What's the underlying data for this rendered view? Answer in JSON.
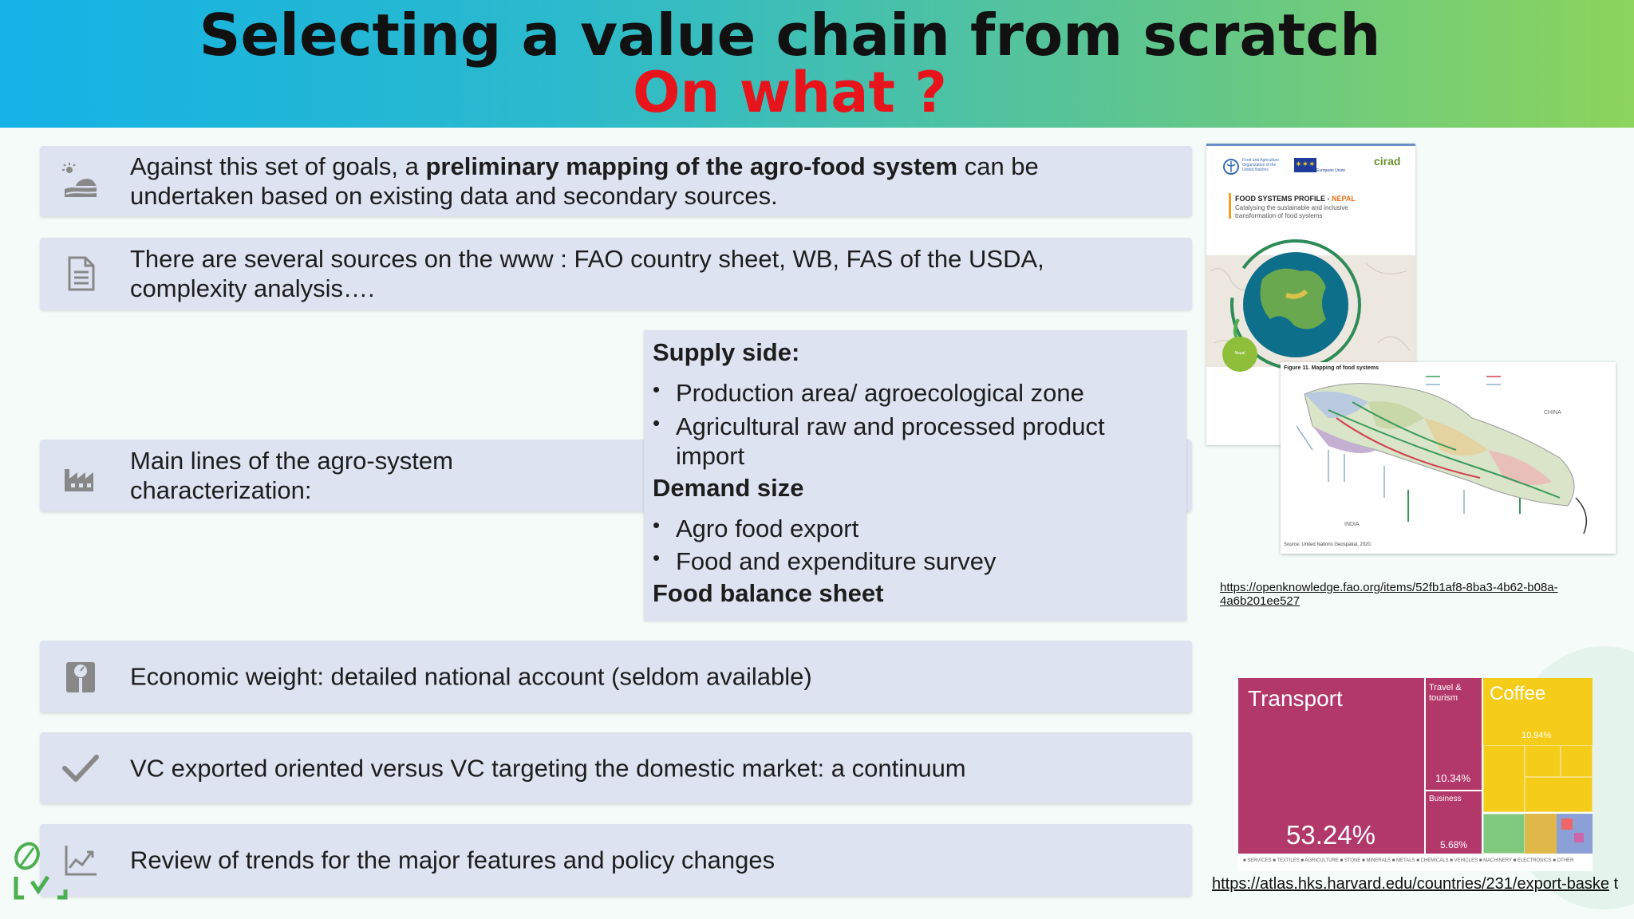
{
  "header": {
    "title": "Selecting a value chain from scratch",
    "subtitle": "On what ?"
  },
  "rows": [
    {
      "icon": "landscape-sun-icon",
      "pre": "Against this set of goals, a ",
      "bold": "preliminary mapping of the agro-food system",
      "post": " can be undertaken based on existing data and secondary sources."
    },
    {
      "icon": "document-icon",
      "text": "There are several sources on the www : FAO country sheet, WB, FAS of the USDA, complexity analysis…."
    },
    {
      "icon": "factory-icon",
      "text": "Main lines of the agro-system characterization:"
    },
    {
      "icon": "scale-icon",
      "text": "Economic weight: detailed national account (seldom available)"
    },
    {
      "icon": "checkmark-icon",
      "text": "VC exported oriented versus VC targeting the domestic market: a continuum"
    },
    {
      "icon": "trend-chart-icon",
      "text": "Review of trends for the major features and policy changes"
    }
  ],
  "characterization": {
    "supply_heading": "Supply side:",
    "supply_items": [
      "Production area/ agroecological zone",
      "Agricultural raw and processed product import"
    ],
    "demand_heading": "Demand size",
    "demand_items": [
      "Agro food export",
      "Food and expenditure survey"
    ],
    "food_balance": "Food balance sheet"
  },
  "fao_doc": {
    "title_prefix": "FOOD SYSTEMS PROFILE - ",
    "title_country": "NEPAL",
    "subtitle": "Catalysing the sustainable and inclusive transformation of food systems",
    "logo_cirad": "cirad",
    "logo_eu": "European Union",
    "logo_fao": "Food and Agriculture Organization of the United Nations",
    "badge": "Nepal"
  },
  "map_figure": {
    "title": "Figure 11. Mapping of food systems",
    "china": "CHINA",
    "india": "INDIA",
    "source": "Source: United Nations Geospatial, 2020."
  },
  "link1": "https://openknowledge.fao.org/items/52fb1af8-8ba3-4b62-b08a-4a6b201ee527",
  "treemap": {
    "transport_label": "Transport",
    "transport_pct": "53.24%",
    "travel_label": "Travel & tourism",
    "travel_pct": "10.34%",
    "business_label": "Business",
    "business_pct": "5.68%",
    "coffee_label": "Coffee",
    "coffee_pct": "10.94%",
    "legend": "■ SERVICES ■ TEXTILES ■ AGRICULTURE ■ STONE ■ MINERALS ■ METALS ■ CHEMICALS ■ VEHICLES ■ MACHINERY ■ ELECTRONICS ■ OTHER",
    "colors": {
      "services": "#b3386a",
      "agriculture": "#f5cc1a",
      "textiles": "#7fc97f",
      "other": "#8aa0d6"
    }
  },
  "link2": {
    "main": "https://atlas.hks.harvard.edu/countries/231/export-baske",
    "tail": " t"
  }
}
